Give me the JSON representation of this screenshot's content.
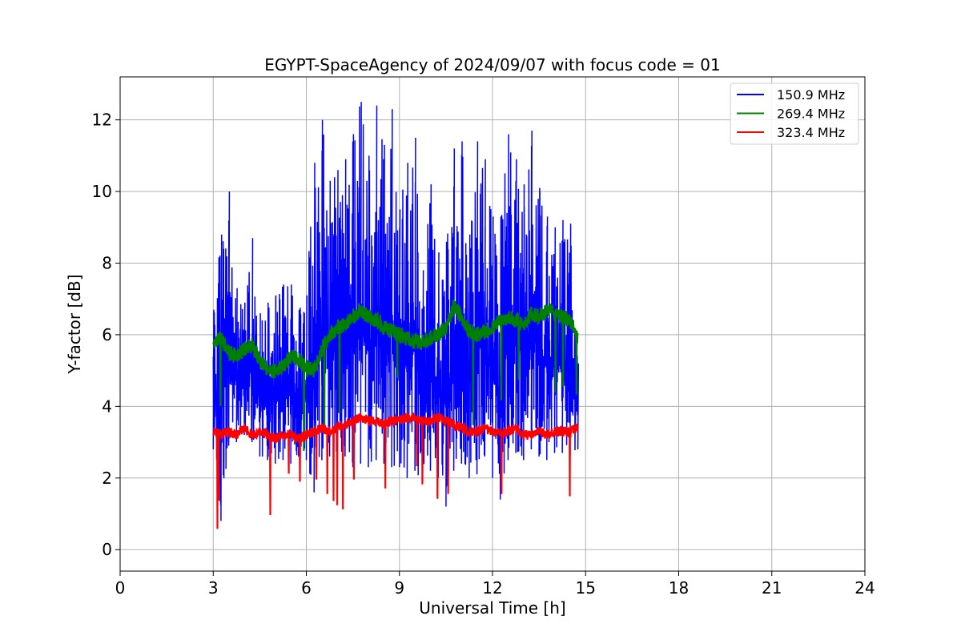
{
  "chart_data": {
    "type": "line",
    "title": "EGYPT-SpaceAgency of 2024/09/07 with focus code = 01",
    "xlabel": "Universal Time [h]",
    "ylabel": "Y-factor [dB]",
    "xlim": [
      0,
      24
    ],
    "ylim": [
      -0.6,
      13.2
    ],
    "xticks": [
      0,
      3,
      6,
      9,
      12,
      15,
      18,
      21,
      24
    ],
    "yticks": [
      0,
      2,
      4,
      6,
      8,
      10,
      12
    ],
    "grid": true,
    "legend_position": "top-right",
    "series": [
      {
        "name": "150.9 MHz",
        "color": "#0000ff",
        "x": [
          3.0,
          3.25,
          3.5,
          3.75,
          4.0,
          4.25,
          4.5,
          4.75,
          5.0,
          5.25,
          5.5,
          5.75,
          6.0,
          6.25,
          6.5,
          6.75,
          7.0,
          7.25,
          7.5,
          7.75,
          8.0,
          8.25,
          8.5,
          8.75,
          9.0,
          9.25,
          9.5,
          9.75,
          10.0,
          10.25,
          10.5,
          10.75,
          11.0,
          11.25,
          11.5,
          11.75,
          12.0,
          12.25,
          12.5,
          12.75,
          13.0,
          13.25,
          13.5,
          13.75,
          14.0,
          14.25,
          14.5,
          14.75
        ],
        "min": [
          2.8,
          0.8,
          2.9,
          3.0,
          3.2,
          3.0,
          2.6,
          2.5,
          2.4,
          2.5,
          2.4,
          2.6,
          2.5,
          1.6,
          2.5,
          2.6,
          2.4,
          2.6,
          2.3,
          2.4,
          2.3,
          2.5,
          2.4,
          2.3,
          2.3,
          2.0,
          2.2,
          1.9,
          2.2,
          2.0,
          1.2,
          2.2,
          2.4,
          2.0,
          2.1,
          2.6,
          2.0,
          1.4,
          2.5,
          2.7,
          2.5,
          2.8,
          2.6,
          2.5,
          2.7,
          2.7,
          2.6,
          2.8
        ],
        "max": [
          6.7,
          8.8,
          10.0,
          7.3,
          6.9,
          8.7,
          6.6,
          6.9,
          7.1,
          7.4,
          7.4,
          6.7,
          7.1,
          10.8,
          12.0,
          10.3,
          10.6,
          10.9,
          11.6,
          12.5,
          11.0,
          12.4,
          11.3,
          12.3,
          9.5,
          10.8,
          11.5,
          7.8,
          10.2,
          8.3,
          8.6,
          11.2,
          11.4,
          8.8,
          11.4,
          10.9,
          9.3,
          9.3,
          11.6,
          10.9,
          10.2,
          11.7,
          10.1,
          9.3,
          9.0,
          9.2,
          9.1,
          5.2
        ]
      },
      {
        "name": "269.4 MHz",
        "color": "#008000",
        "x": [
          3.0,
          3.25,
          3.5,
          3.75,
          4.0,
          4.25,
          4.5,
          4.75,
          5.0,
          5.25,
          5.5,
          5.75,
          6.0,
          6.25,
          6.5,
          6.75,
          7.0,
          7.25,
          7.5,
          7.75,
          8.0,
          8.25,
          8.5,
          8.75,
          9.0,
          9.25,
          9.5,
          9.75,
          10.0,
          10.25,
          10.5,
          10.75,
          11.0,
          11.25,
          11.5,
          11.75,
          12.0,
          12.25,
          12.5,
          12.75,
          13.0,
          13.25,
          13.5,
          13.75,
          14.0,
          14.25,
          14.5,
          14.75
        ],
        "values": [
          5.8,
          5.9,
          5.5,
          5.4,
          5.6,
          5.7,
          5.3,
          5.0,
          5.0,
          5.1,
          5.4,
          5.3,
          5.1,
          5.0,
          5.6,
          6.0,
          6.2,
          6.3,
          6.5,
          6.7,
          6.5,
          6.4,
          6.2,
          6.1,
          6.0,
          5.9,
          5.8,
          5.8,
          5.9,
          6.0,
          6.2,
          6.8,
          6.5,
          6.1,
          6.0,
          6.1,
          6.2,
          6.4,
          6.5,
          6.4,
          6.3,
          6.6,
          6.5,
          6.7,
          6.6,
          6.5,
          6.4,
          5.9
        ]
      },
      {
        "name": "323.4 MHz",
        "color": "#ff0000",
        "x": [
          3.0,
          3.25,
          3.5,
          3.75,
          4.0,
          4.25,
          4.5,
          4.75,
          5.0,
          5.25,
          5.5,
          5.75,
          6.0,
          6.25,
          6.5,
          6.75,
          7.0,
          7.25,
          7.5,
          7.75,
          8.0,
          8.25,
          8.5,
          8.75,
          9.0,
          9.25,
          9.5,
          9.75,
          10.0,
          10.25,
          10.5,
          10.75,
          11.0,
          11.25,
          11.5,
          11.75,
          12.0,
          12.25,
          12.5,
          12.75,
          13.0,
          13.25,
          13.5,
          13.75,
          14.0,
          14.25,
          14.5,
          14.75
        ],
        "values": [
          3.3,
          3.2,
          3.3,
          3.2,
          3.4,
          3.2,
          3.3,
          3.2,
          3.1,
          3.2,
          3.2,
          3.1,
          3.2,
          3.3,
          3.4,
          3.3,
          3.4,
          3.5,
          3.6,
          3.7,
          3.6,
          3.6,
          3.5,
          3.6,
          3.6,
          3.7,
          3.7,
          3.6,
          3.6,
          3.7,
          3.6,
          3.5,
          3.4,
          3.3,
          3.3,
          3.4,
          3.3,
          3.3,
          3.3,
          3.4,
          3.2,
          3.2,
          3.3,
          3.2,
          3.3,
          3.3,
          3.3,
          3.4
        ]
      }
    ]
  }
}
